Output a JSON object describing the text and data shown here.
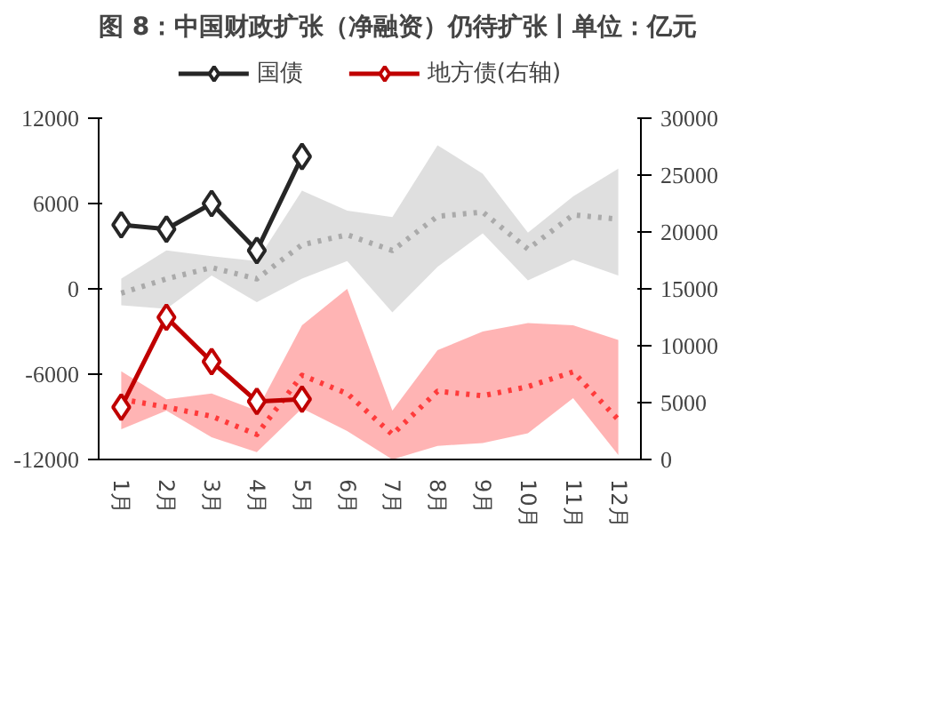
{
  "chart_data": {
    "type": "line",
    "title": "图 8：中国财政扩张（净融资）仍待扩张丨单位：亿元",
    "categories": [
      "1月",
      "2月",
      "3月",
      "4月",
      "5月",
      "6月",
      "7月",
      "8月",
      "9月",
      "10月",
      "11月",
      "12月"
    ],
    "series": [
      {
        "color": "#aaaaaa",
        "line_style": "dotted",
        "marker": "none",
        "values": [
          -300,
          700,
          1500,
          700,
          3100,
          3800,
          2700,
          5100,
          5400,
          2800,
          5200,
          4900
        ],
        "lower": [
          -1150,
          -1400,
          930,
          -930,
          720,
          1950,
          -1650,
          1550,
          3900,
          600,
          2050,
          930
        ],
        "upper": [
          720,
          2700,
          2300,
          1950,
          6900,
          5500,
          5050,
          10100,
          8100,
          3950,
          6500,
          8450
        ]
      },
      {
        "color": "#ff3b3b",
        "axis": "y2",
        "line_style": "dotted",
        "marker": "none",
        "values": [
          5300,
          4600,
          3800,
          2200,
          7400,
          5800,
          2200,
          6000,
          5600,
          6400,
          7700,
          3500
        ],
        "lower": [
          2650,
          4300,
          1950,
          650,
          4500,
          2500,
          0,
          1200,
          1450,
          2300,
          5400,
          400
        ],
        "upper": [
          7750,
          5300,
          5800,
          4300,
          11800,
          15000,
          4300,
          9600,
          11250,
          12000,
          11800,
          10500
        ]
      },
      {
        "name": "国债",
        "color": "#262626",
        "values": [
          4500,
          4200,
          6000,
          2700,
          9300,
          null,
          null,
          null,
          null,
          null,
          null,
          null
        ]
      },
      {
        "name": "地方债(右轴)",
        "color": "#c00000",
        "axis": "y2",
        "values": [
          4600,
          12500,
          8600,
          5100,
          5300,
          null,
          null,
          null,
          null,
          null,
          null,
          null
        ]
      }
    ],
    "ylim": [
      -12000,
      12000
    ],
    "yticks": [
      -12000,
      -6000,
      0,
      6000,
      12000
    ],
    "y2lim": [
      0,
      30000
    ],
    "y2ticks": [
      0,
      5000,
      10000,
      15000,
      20000,
      25000,
      30000
    ],
    "marker": "diamond",
    "line_style": "solid",
    "grid": false,
    "legend": "top"
  }
}
